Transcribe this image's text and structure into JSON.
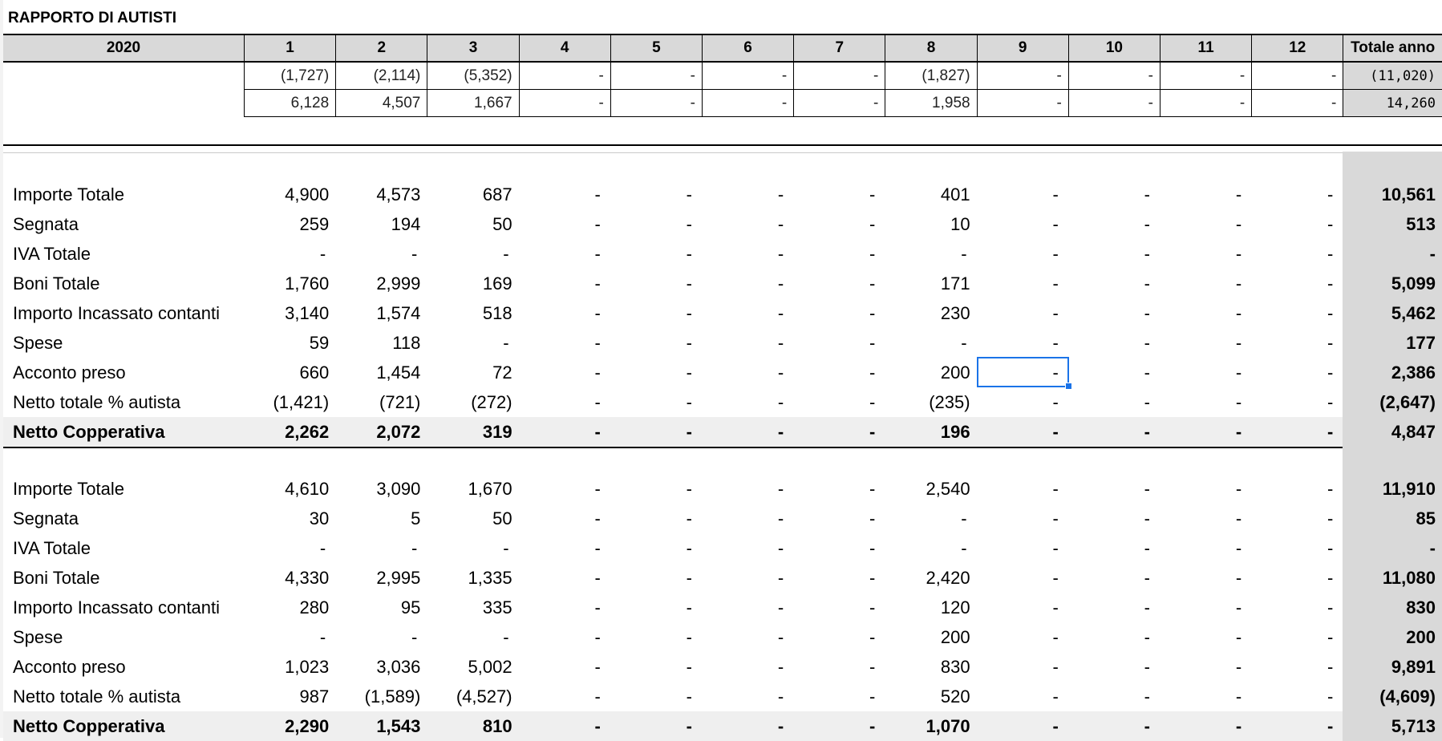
{
  "title": "RAPPORTO DI AUTISTI",
  "header": {
    "year": "2020",
    "months": [
      "1",
      "2",
      "3",
      "4",
      "5",
      "6",
      "7",
      "8",
      "9",
      "10",
      "11",
      "12"
    ],
    "total_label": "Totale anno"
  },
  "summary_rows": [
    {
      "values": [
        "(1,727)",
        "(2,114)",
        "(5,352)",
        "-",
        "-",
        "-",
        "-",
        "(1,827)",
        "-",
        "-",
        "-",
        "-"
      ],
      "total": "(11,020)"
    },
    {
      "values": [
        "6,128",
        "4,507",
        "1,667",
        "-",
        "-",
        "-",
        "-",
        "1,958",
        "-",
        "-",
        "-",
        "-"
      ],
      "total": "14,260"
    }
  ],
  "sections": [
    {
      "rows": [
        {
          "label": "Importe Totale",
          "values": [
            "4,900",
            "4,573",
            "687",
            "-",
            "-",
            "-",
            "-",
            "401",
            "-",
            "-",
            "-",
            "-"
          ],
          "total": "10,561",
          "bold": false
        },
        {
          "label": "Segnata",
          "values": [
            "259",
            "194",
            "50",
            "-",
            "-",
            "-",
            "-",
            "10",
            "-",
            "-",
            "-",
            "-"
          ],
          "total": "513",
          "bold": false
        },
        {
          "label": "IVA Totale",
          "values": [
            "-",
            "-",
            "-",
            "-",
            "-",
            "-",
            "-",
            "-",
            "-",
            "-",
            "-",
            "-"
          ],
          "total": "-",
          "bold": false
        },
        {
          "label": "Boni Totale",
          "values": [
            "1,760",
            "2,999",
            "169",
            "-",
            "-",
            "-",
            "-",
            "171",
            "-",
            "-",
            "-",
            "-"
          ],
          "total": "5,099",
          "bold": false
        },
        {
          "label": "Importo Incassato contanti",
          "values": [
            "3,140",
            "1,574",
            "518",
            "-",
            "-",
            "-",
            "-",
            "230",
            "-",
            "-",
            "-",
            "-"
          ],
          "total": "5,462",
          "bold": false
        },
        {
          "label": "Spese",
          "values": [
            "59",
            "118",
            "-",
            "-",
            "-",
            "-",
            "-",
            "-",
            "-",
            "-",
            "-",
            "-"
          ],
          "total": "177",
          "bold": false
        },
        {
          "label": "Acconto preso",
          "values": [
            "660",
            "1,454",
            "72",
            "-",
            "-",
            "-",
            "-",
            "200",
            "-",
            "-",
            "-",
            "-"
          ],
          "total": "2,386",
          "bold": false
        },
        {
          "label": "Netto totale % autista",
          "values": [
            "(1,421)",
            "(721)",
            "(272)",
            "-",
            "-",
            "-",
            "-",
            "(235)",
            "-",
            "-",
            "-",
            "-"
          ],
          "total": "(2,647)",
          "bold": false
        },
        {
          "label": "Netto Copperativa",
          "values": [
            "2,262",
            "2,072",
            "319",
            "-",
            "-",
            "-",
            "-",
            "196",
            "-",
            "-",
            "-",
            "-"
          ],
          "total": "4,847",
          "bold": true
        }
      ]
    },
    {
      "rows": [
        {
          "label": "Importe Totale",
          "values": [
            "4,610",
            "3,090",
            "1,670",
            "-",
            "-",
            "-",
            "-",
            "2,540",
            "-",
            "-",
            "-",
            "-"
          ],
          "total": "11,910",
          "bold": false
        },
        {
          "label": "Segnata",
          "values": [
            "30",
            "5",
            "50",
            "-",
            "-",
            "-",
            "-",
            "-",
            "-",
            "-",
            "-",
            "-"
          ],
          "total": "85",
          "bold": false
        },
        {
          "label": "IVA Totale",
          "values": [
            "-",
            "-",
            "-",
            "-",
            "-",
            "-",
            "-",
            "-",
            "-",
            "-",
            "-",
            "-"
          ],
          "total": "-",
          "bold": false
        },
        {
          "label": "Boni Totale",
          "values": [
            "4,330",
            "2,995",
            "1,335",
            "-",
            "-",
            "-",
            "-",
            "2,420",
            "-",
            "-",
            "-",
            "-"
          ],
          "total": "11,080",
          "bold": false
        },
        {
          "label": "Importo Incassato contanti",
          "values": [
            "280",
            "95",
            "335",
            "-",
            "-",
            "-",
            "-",
            "120",
            "-",
            "-",
            "-",
            "-"
          ],
          "total": "830",
          "bold": false
        },
        {
          "label": "Spese",
          "values": [
            "-",
            "-",
            "-",
            "-",
            "-",
            "-",
            "-",
            "200",
            "-",
            "-",
            "-",
            "-"
          ],
          "total": "200",
          "bold": false
        },
        {
          "label": "Acconto preso",
          "values": [
            "1,023",
            "3,036",
            "5,002",
            "-",
            "-",
            "-",
            "-",
            "830",
            "-",
            "-",
            "-",
            "-"
          ],
          "total": "9,891",
          "bold": false
        },
        {
          "label": "Netto totale % autista",
          "values": [
            "987",
            "(1,589)",
            "(4,527)",
            "-",
            "-",
            "-",
            "-",
            "520",
            "-",
            "-",
            "-",
            "-"
          ],
          "total": "(4,609)",
          "bold": false
        },
        {
          "label": "Netto Copperativa",
          "values": [
            "2,290",
            "1,543",
            "810",
            "-",
            "-",
            "-",
            "-",
            "1,070",
            "-",
            "-",
            "-",
            "-"
          ],
          "total": "5,713",
          "bold": true
        }
      ]
    }
  ],
  "selected_cell": {
    "section": 0,
    "row": 6,
    "month_index": 8
  },
  "colors": {
    "header_bg": "#d9d9d9",
    "total_col_bg": "#d9d9d9",
    "netto_row_bg": "#efefef",
    "selection": "#1a73e8",
    "gridline": "#e2e2e2",
    "border": "#000000"
  }
}
